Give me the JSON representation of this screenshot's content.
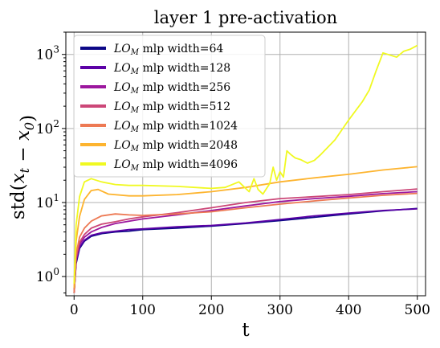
{
  "chart_data": {
    "type": "line",
    "title": "layer 1 pre-activation",
    "xlabel": "t",
    "ylabel": "std(x_t − x_0)",
    "yscale": "log",
    "xlim": [
      -12,
      512
    ],
    "ylim": [
      0.55,
      2000
    ],
    "xticks": [
      0,
      100,
      200,
      300,
      400,
      500
    ],
    "yticks": [
      1,
      10,
      100,
      1000
    ],
    "ytick_labels": [
      {
        "base": "10",
        "exp": "0"
      },
      {
        "base": "10",
        "exp": "1"
      },
      {
        "base": "10",
        "exp": "2"
      },
      {
        "base": "10",
        "exp": "3"
      }
    ],
    "grid": true,
    "legend_position": "upper-left",
    "series": [
      {
        "name": "mlp width=64",
        "prefix": "LO",
        "sub": "M",
        "color": "#0d0887",
        "points": [
          [
            0,
            0.6
          ],
          [
            3,
            1.5
          ],
          [
            8,
            2.4
          ],
          [
            15,
            3.0
          ],
          [
            25,
            3.5
          ],
          [
            40,
            3.8
          ],
          [
            60,
            4.0
          ],
          [
            80,
            4.1
          ],
          [
            100,
            4.3
          ],
          [
            150,
            4.5
          ],
          [
            200,
            4.8
          ],
          [
            250,
            5.2
          ],
          [
            300,
            5.7
          ],
          [
            350,
            6.3
          ],
          [
            400,
            7.0
          ],
          [
            450,
            7.7
          ],
          [
            500,
            8.3
          ]
        ]
      },
      {
        "name": "mlp width=128",
        "prefix": "LO",
        "sub": "M",
        "color": "#5c01a6",
        "points": [
          [
            0,
            0.6
          ],
          [
            3,
            1.6
          ],
          [
            8,
            2.5
          ],
          [
            15,
            3.1
          ],
          [
            25,
            3.6
          ],
          [
            40,
            3.9
          ],
          [
            60,
            4.1
          ],
          [
            80,
            4.3
          ],
          [
            100,
            4.4
          ],
          [
            150,
            4.7
          ],
          [
            200,
            4.9
          ],
          [
            250,
            5.3
          ],
          [
            300,
            5.9
          ],
          [
            350,
            6.6
          ],
          [
            400,
            7.2
          ],
          [
            450,
            7.8
          ],
          [
            500,
            8.2
          ]
        ]
      },
      {
        "name": "mlp width=256",
        "prefix": "LO",
        "sub": "M",
        "color": "#9c179e",
        "points": [
          [
            0,
            0.6
          ],
          [
            3,
            1.7
          ],
          [
            8,
            2.7
          ],
          [
            15,
            3.4
          ],
          [
            25,
            4.0
          ],
          [
            40,
            4.6
          ],
          [
            60,
            5.2
          ],
          [
            80,
            5.6
          ],
          [
            100,
            6.0
          ],
          [
            150,
            6.8
          ],
          [
            200,
            7.8
          ],
          [
            250,
            9.0
          ],
          [
            300,
            10.3
          ],
          [
            350,
            11.3
          ],
          [
            400,
            12.1
          ],
          [
            450,
            13.2
          ],
          [
            500,
            14.0
          ]
        ]
      },
      {
        "name": "mlp width=512",
        "prefix": "LO",
        "sub": "M",
        "color": "#cc4778",
        "points": [
          [
            0,
            0.6
          ],
          [
            3,
            1.8
          ],
          [
            8,
            2.9
          ],
          [
            15,
            3.7
          ],
          [
            25,
            4.5
          ],
          [
            40,
            5.1
          ],
          [
            60,
            5.5
          ],
          [
            80,
            6.0
          ],
          [
            100,
            6.4
          ],
          [
            150,
            7.3
          ],
          [
            200,
            8.5
          ],
          [
            250,
            10.0
          ],
          [
            300,
            11.3
          ],
          [
            350,
            12.0
          ],
          [
            400,
            12.8
          ],
          [
            450,
            14.0
          ],
          [
            500,
            15.2
          ]
        ]
      },
      {
        "name": "mlp width=1024",
        "prefix": "LO",
        "sub": "M",
        "color": "#ed7953",
        "points": [
          [
            0,
            0.6
          ],
          [
            3,
            2.0
          ],
          [
            8,
            3.4
          ],
          [
            15,
            4.5
          ],
          [
            25,
            5.6
          ],
          [
            40,
            6.6
          ],
          [
            60,
            7.0
          ],
          [
            80,
            6.8
          ],
          [
            100,
            6.7
          ],
          [
            150,
            7.0
          ],
          [
            200,
            7.5
          ],
          [
            250,
            8.5
          ],
          [
            300,
            9.5
          ],
          [
            350,
            10.5
          ],
          [
            400,
            11.5
          ],
          [
            450,
            12.5
          ],
          [
            500,
            13.3
          ]
        ]
      },
      {
        "name": "mlp width=2048",
        "prefix": "LO",
        "sub": "M",
        "color": "#fdb42f",
        "points": [
          [
            0,
            0.7
          ],
          [
            3,
            3.0
          ],
          [
            8,
            6.5
          ],
          [
            15,
            11.0
          ],
          [
            25,
            14.5
          ],
          [
            35,
            15.0
          ],
          [
            50,
            13.0
          ],
          [
            80,
            12.3
          ],
          [
            100,
            12.3
          ],
          [
            150,
            12.8
          ],
          [
            200,
            14.0
          ],
          [
            250,
            16.0
          ],
          [
            300,
            19.0
          ],
          [
            350,
            21.5
          ],
          [
            400,
            24.0
          ],
          [
            450,
            27.5
          ],
          [
            500,
            30.5
          ]
        ]
      },
      {
        "name": "mlp width=4096",
        "prefix": "LO",
        "sub": "M",
        "color": "#f0f921",
        "points": [
          [
            0,
            0.8
          ],
          [
            3,
            5.0
          ],
          [
            8,
            12.0
          ],
          [
            15,
            19.0
          ],
          [
            25,
            21.0
          ],
          [
            40,
            19.0
          ],
          [
            60,
            17.5
          ],
          [
            80,
            17.0
          ],
          [
            100,
            17.0
          ],
          [
            150,
            16.5
          ],
          [
            200,
            15.5
          ],
          [
            220,
            16.0
          ],
          [
            240,
            19.0
          ],
          [
            255,
            14.0
          ],
          [
            262,
            21.0
          ],
          [
            268,
            15.0
          ],
          [
            275,
            13.0
          ],
          [
            285,
            18.0
          ],
          [
            290,
            30.0
          ],
          [
            295,
            20.0
          ],
          [
            300,
            26.0
          ],
          [
            305,
            22.0
          ],
          [
            310,
            50.0
          ],
          [
            315,
            45.0
          ],
          [
            322,
            40.0
          ],
          [
            330,
            38.0
          ],
          [
            340,
            34.0
          ],
          [
            350,
            37.0
          ],
          [
            360,
            45.0
          ],
          [
            380,
            70.0
          ],
          [
            400,
            130.0
          ],
          [
            420,
            230.0
          ],
          [
            430,
            330.0
          ],
          [
            440,
            600.0
          ],
          [
            450,
            1050.0
          ],
          [
            465,
            950.0
          ],
          [
            470,
            920.0
          ],
          [
            480,
            1100.0
          ],
          [
            490,
            1180.0
          ],
          [
            500,
            1320.0
          ]
        ]
      }
    ]
  }
}
